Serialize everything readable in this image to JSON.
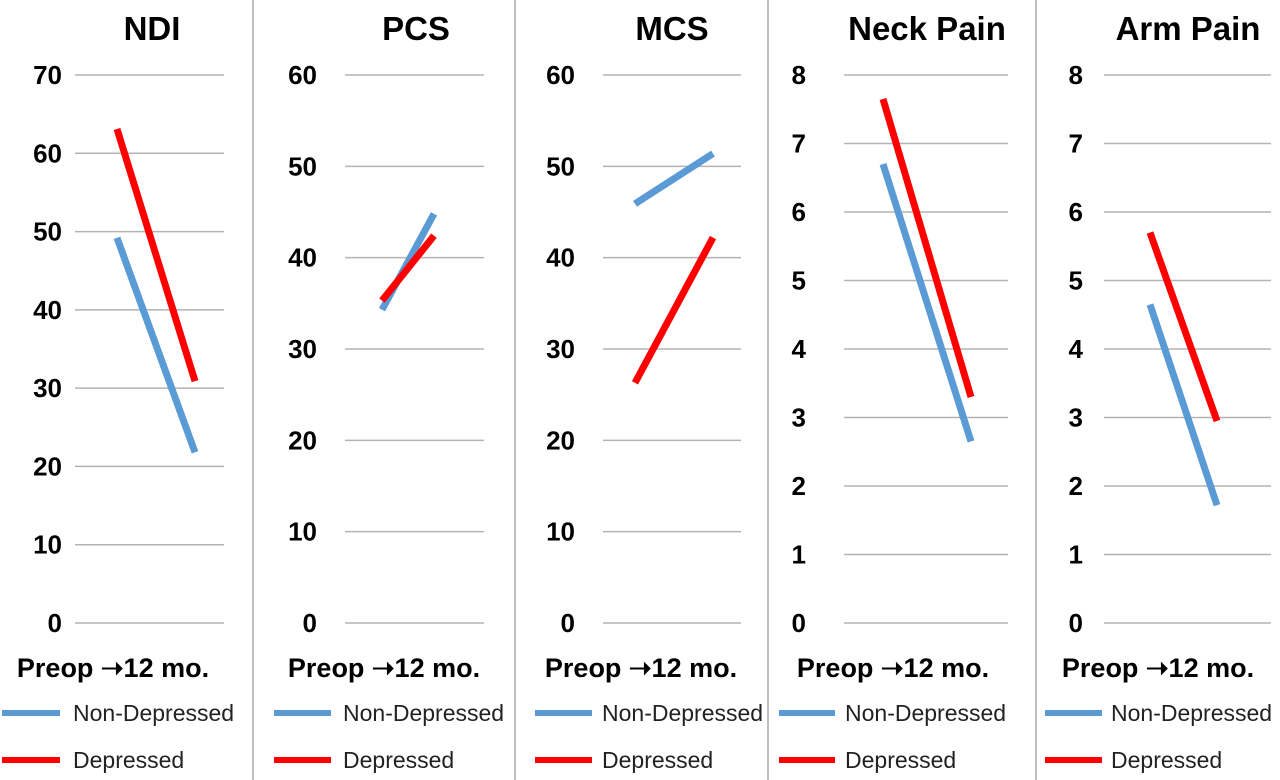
{
  "colors": {
    "non_depressed": "#5b9bd5",
    "depressed": "#ff0000",
    "grid": "#b3b3b3"
  },
  "chart_data": [
    {
      "type": "line",
      "title": "NDI",
      "xlabel": "Preop ➝12 mo.",
      "ylim": [
        0,
        70
      ],
      "yticks": [
        0,
        10,
        20,
        30,
        40,
        50,
        60,
        70
      ],
      "grid": true,
      "x": [
        "Preop",
        "12 mo."
      ],
      "series": [
        {
          "name": "Non-Depressed",
          "color": "#5b9bd5",
          "values": [
            49.2,
            21.8
          ]
        },
        {
          "name": "Depressed",
          "color": "#ff0000",
          "values": [
            63.1,
            30.9
          ]
        }
      ],
      "legend": "bottom"
    },
    {
      "type": "line",
      "title": "PCS",
      "xlabel": "Preop ➝12 mo.",
      "ylim": [
        0,
        60
      ],
      "yticks": [
        0,
        10,
        20,
        30,
        40,
        50,
        60
      ],
      "grid": true,
      "x": [
        "Preop",
        "12 mo."
      ],
      "series": [
        {
          "name": "Non-Depressed",
          "color": "#5b9bd5",
          "values": [
            34.3,
            44.8
          ]
        },
        {
          "name": "Depressed",
          "color": "#ff0000",
          "values": [
            35.3,
            42.4
          ]
        }
      ],
      "legend": "bottom"
    },
    {
      "type": "line",
      "title": "MCS",
      "xlabel": "Preop ➝12 mo.",
      "ylim": [
        0,
        60
      ],
      "yticks": [
        0,
        10,
        20,
        30,
        40,
        50,
        60
      ],
      "grid": true,
      "x": [
        "Preop",
        "12 mo."
      ],
      "series": [
        {
          "name": "Non-Depressed",
          "color": "#5b9bd5",
          "values": [
            45.9,
            51.4
          ]
        },
        {
          "name": "Depressed",
          "color": "#ff0000",
          "values": [
            26.3,
            42.2
          ]
        }
      ],
      "legend": "bottom"
    },
    {
      "type": "line",
      "title": "Neck Pain",
      "xlabel": "Preop ➝12 mo.",
      "ylim": [
        0,
        8
      ],
      "yticks": [
        0,
        1,
        2,
        3,
        4,
        5,
        6,
        7,
        8
      ],
      "grid": true,
      "x": [
        "Preop",
        "12 mo."
      ],
      "series": [
        {
          "name": "Non-Depressed",
          "color": "#5b9bd5",
          "values": [
            6.7,
            2.65
          ]
        },
        {
          "name": "Depressed",
          "color": "#ff0000",
          "values": [
            7.65,
            3.3
          ]
        }
      ],
      "legend": "bottom"
    },
    {
      "type": "line",
      "title": "Arm Pain",
      "xlabel": "Preop ➝12 mo.",
      "ylim": [
        0,
        8
      ],
      "yticks": [
        0,
        1,
        2,
        3,
        4,
        5,
        6,
        7,
        8
      ],
      "grid": true,
      "x": [
        "Preop",
        "12 mo."
      ],
      "series": [
        {
          "name": "Non-Depressed",
          "color": "#5b9bd5",
          "values": [
            4.65,
            1.72
          ]
        },
        {
          "name": "Depressed",
          "color": "#ff0000",
          "values": [
            5.7,
            2.95
          ]
        }
      ],
      "legend": "bottom"
    }
  ]
}
